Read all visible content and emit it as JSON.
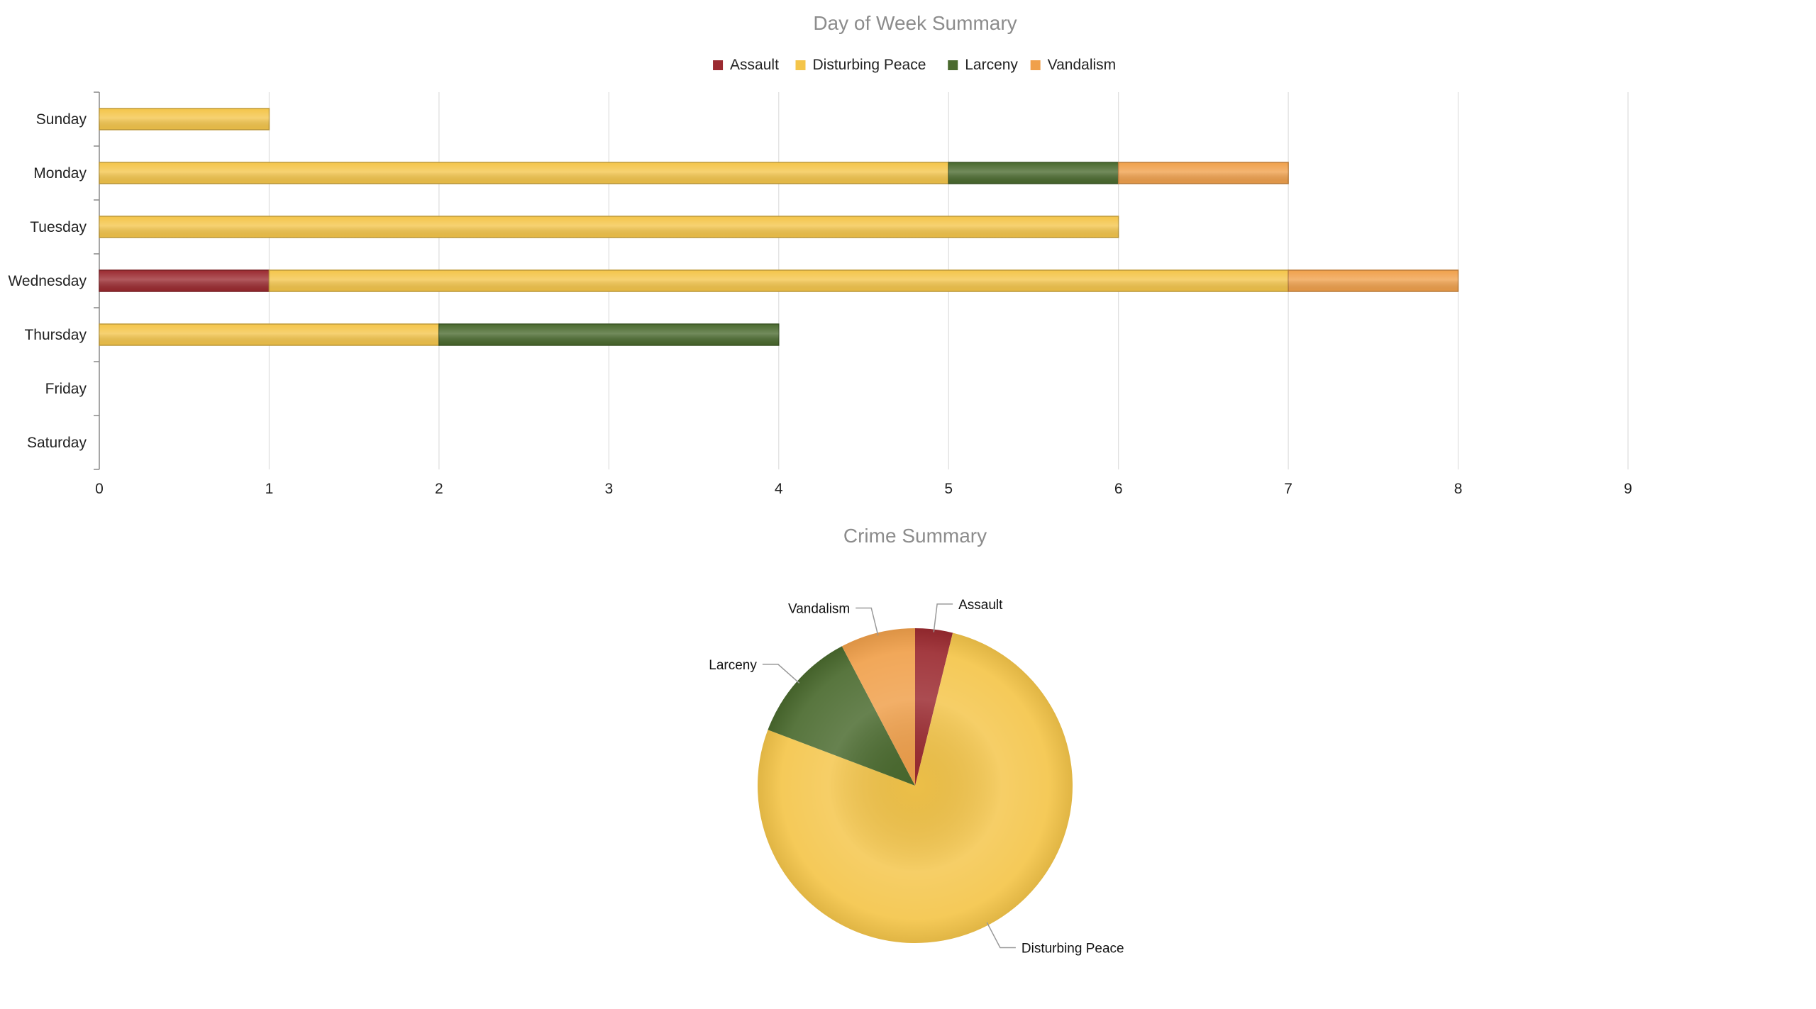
{
  "colors": {
    "Assault": "#9b2a30",
    "Disturbing Peace": "#f4c54a",
    "Larceny": "#4a6a2e",
    "Vandalism": "#f0a04b"
  },
  "chart_data": [
    {
      "type": "bar",
      "orientation": "horizontal",
      "stacked": true,
      "title": "Day of Week Summary",
      "categories": [
        "Sunday",
        "Monday",
        "Tuesday",
        "Wednesday",
        "Thursday",
        "Friday",
        "Saturday"
      ],
      "series": [
        {
          "name": "Assault",
          "values": [
            0,
            0,
            0,
            1,
            0,
            0,
            0
          ]
        },
        {
          "name": "Disturbing Peace",
          "values": [
            1,
            5,
            6,
            6,
            2,
            0,
            0
          ]
        },
        {
          "name": "Larceny",
          "values": [
            0,
            1,
            0,
            0,
            2,
            0,
            0
          ]
        },
        {
          "name": "Vandalism",
          "values": [
            0,
            1,
            0,
            1,
            0,
            0,
            0
          ]
        }
      ],
      "xlim": [
        0,
        9
      ],
      "xticks": [
        "0",
        "1",
        "2",
        "3",
        "4",
        "5",
        "6",
        "7",
        "8",
        "9"
      ],
      "grid": true,
      "legend": "top-center"
    },
    {
      "type": "pie",
      "title": "Crime Summary",
      "slices": [
        {
          "name": "Assault",
          "value": 1
        },
        {
          "name": "Disturbing Peace",
          "value": 20
        },
        {
          "name": "Larceny",
          "value": 3
        },
        {
          "name": "Vandalism",
          "value": 2
        }
      ],
      "legend": "none"
    }
  ]
}
